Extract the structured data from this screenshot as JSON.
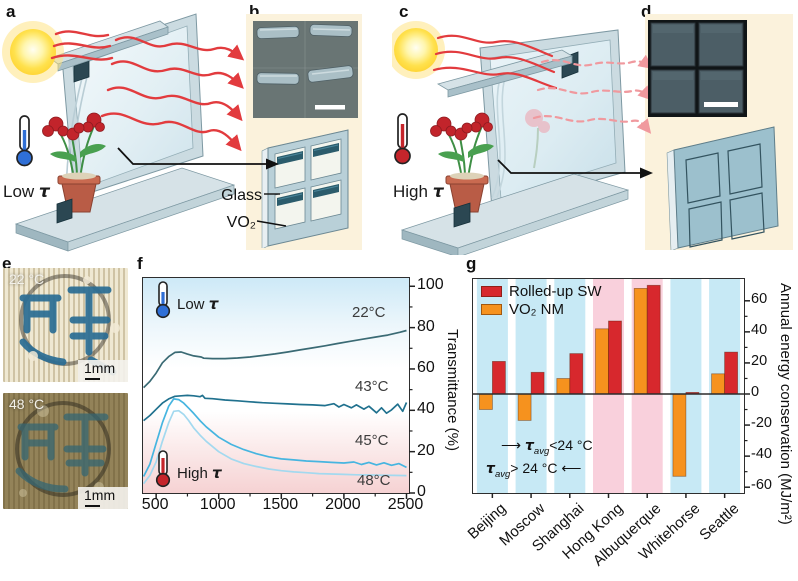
{
  "panel_letters": {
    "a": "a",
    "b": "b",
    "c": "c",
    "d": "d",
    "e": "e",
    "f": "f",
    "g": "g"
  },
  "schematic": {
    "low_state": {
      "prefix": "Low",
      "tau": "τ"
    },
    "high_state": {
      "prefix": "High",
      "tau": "τ"
    },
    "glass_label": "Glass",
    "vo2_label": "VO₂"
  },
  "panel_e": {
    "photo_top": {
      "temp": "22 °C",
      "scale": "1mm"
    },
    "photo_bottom": {
      "temp": "48 °C",
      "scale": "1mm"
    }
  },
  "panel_f": {
    "ylabel": "Transmittance (%)",
    "low_label": {
      "prefix": "Low",
      "tau": "τ"
    },
    "high_label": {
      "prefix": "High",
      "tau": "τ"
    }
  },
  "panel_g": {
    "ylabel": "Annual energy conservation (MJ/m²)",
    "notes": {
      "cool": {
        "arrow": "⟶",
        "tau": "τ",
        "sub": "avg",
        "cmp": "<24 °C"
      },
      "warm": {
        "tau": "τ",
        "sub": "avg",
        "cmp": "> 24 °C",
        "arrow": "⟵"
      }
    }
  },
  "chart_data": [
    {
      "type": "line",
      "title": "",
      "xlabel": "",
      "ylabel": "Transmittance (%)",
      "xlim": [
        400,
        2500
      ],
      "ylim": [
        0,
        100
      ],
      "x_ticks": [
        500,
        1000,
        1500,
        2000,
        2500
      ],
      "x_minor_ticks": [
        750,
        1250,
        1750,
        2250
      ],
      "y_ticks": [
        0,
        20,
        40,
        60,
        80,
        100
      ],
      "y_minor_ticks": [
        10,
        30,
        50,
        70,
        90
      ],
      "legend_position": "curve-end labels inside right",
      "grid": false,
      "annotations": [
        "Low τ (blue thermometer, top left)",
        "High τ (red thermometer, bottom left)"
      ],
      "series": [
        {
          "name": "22°C",
          "color": "#3a6a74",
          "x": [
            400,
            450,
            500,
            550,
            600,
            650,
            700,
            750,
            800,
            860,
            880,
            950,
            1050,
            1150,
            1250,
            1350,
            1450,
            1550,
            1650,
            1750,
            1850,
            1950,
            2050,
            2150,
            2250,
            2350,
            2450,
            2500
          ],
          "values": [
            51,
            54,
            58,
            63,
            66,
            68,
            68.2,
            67.2,
            66.3,
            65.8,
            65.2,
            65,
            65,
            65.3,
            65.8,
            66.5,
            67.3,
            68.2,
            69.2,
            70.2,
            71.2,
            72.3,
            73.4,
            74.4,
            75.4,
            76.4,
            77.8,
            78.6
          ]
        },
        {
          "name": "43°C",
          "color": "#20718e",
          "x": [
            400,
            450,
            500,
            550,
            600,
            650,
            700,
            750,
            800,
            850,
            870,
            890,
            950,
            1050,
            1150,
            1250,
            1350,
            1450,
            1550,
            1650,
            1750,
            1850,
            1920,
            1960,
            2000,
            2060,
            2100,
            2160,
            2200,
            2260,
            2300,
            2340,
            2380,
            2430,
            2470,
            2500
          ],
          "values": [
            35,
            37.5,
            40.5,
            43.5,
            45.5,
            46.8,
            47,
            47.2,
            47,
            46.6,
            47.2,
            45.8,
            45.6,
            45,
            44.6,
            44.1,
            43.7,
            43.4,
            43.1,
            42.8,
            42.6,
            42.3,
            43.2,
            41.6,
            42.8,
            41.2,
            42.6,
            40.6,
            42,
            38.8,
            41.2,
            38.6,
            40.2,
            43,
            39.5,
            43.8
          ]
        },
        {
          "name": "45°C",
          "color": "#46b5e0",
          "x": [
            400,
            450,
            500,
            550,
            600,
            640,
            680,
            720,
            760,
            800,
            850,
            900,
            1000,
            1100,
            1200,
            1300,
            1400,
            1500,
            1600,
            1700,
            1800,
            1900,
            2000,
            2080,
            2140,
            2200,
            2260,
            2320,
            2380,
            2440,
            2500
          ],
          "values": [
            8,
            14,
            24,
            34,
            42,
            45.5,
            45.2,
            43.5,
            41,
            38.5,
            35,
            32,
            27,
            23.5,
            21,
            19,
            17.5,
            16.5,
            16,
            15.5,
            15.2,
            14.8,
            14.5,
            15,
            13.8,
            14.8,
            13.6,
            14.6,
            13.4,
            14.2,
            12.4
          ]
        },
        {
          "name": "48°C",
          "color": "#a3d9ef",
          "x": [
            400,
            450,
            500,
            550,
            600,
            640,
            680,
            720,
            760,
            800,
            850,
            900,
            1000,
            1100,
            1200,
            1300,
            1400,
            1500,
            1600,
            1700,
            1800,
            1900,
            2000,
            2100,
            2200,
            2300,
            2400,
            2500
          ],
          "values": [
            4.5,
            8.5,
            15,
            25,
            34,
            39.5,
            39.8,
            38,
            35,
            31.5,
            28,
            25,
            20,
            16.5,
            14.2,
            12.8,
            11.6,
            10.8,
            10.2,
            9.8,
            9.4,
            9.2,
            9,
            8.8,
            8.7,
            8.6,
            8.5,
            8.4
          ]
        }
      ]
    },
    {
      "type": "bar",
      "title": "",
      "categories": [
        "Beijing",
        "Moscow",
        "Shanghai",
        "Hong Kong",
        "Albuquerque",
        "Whitehorse",
        "Seattle"
      ],
      "series": [
        {
          "name": "Rolled-up SW",
          "color": "#d7282d",
          "values": [
            21,
            14,
            26,
            47,
            70,
            1,
            27
          ]
        },
        {
          "name": "VO₂ NM",
          "color": "#f6921e",
          "values": [
            -10,
            -17,
            10,
            42,
            68,
            -53,
            13
          ]
        }
      ],
      "ylabel": "Annual energy conservation (MJ/m²)",
      "ylim": [
        -63,
        74
      ],
      "y_ticks": [
        60,
        40,
        20,
        0,
        -20,
        -40,
        -60
      ],
      "y_minor_ticks": [
        50,
        30,
        10,
        -10,
        -30,
        -50
      ],
      "legend_position": "top-left inside plot",
      "grid": false,
      "band_colors": {
        "cool": "#c7e9f5",
        "warm": "#f9d0dc"
      },
      "bands": [
        "cool",
        "cool",
        "cool",
        "warm",
        "warm",
        "cool",
        "cool"
      ],
      "annotations": [
        "⟶ τavg<24 °C (blue bands)",
        "τavg> 24 °C ⟵ (pink bands)"
      ]
    }
  ]
}
